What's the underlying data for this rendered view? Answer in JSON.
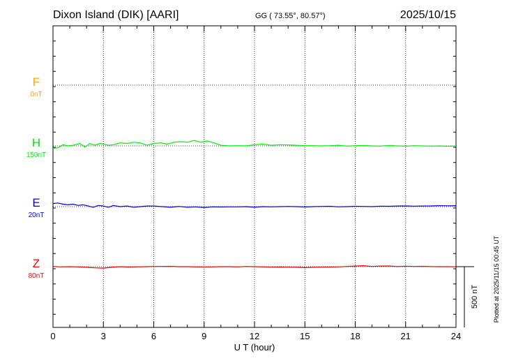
{
  "header": {
    "station": "Dixon Island (DIK)  [AARI]",
    "coords": "GG ( 73.55°,  80.57°)",
    "date": "2025/10/15"
  },
  "footer": {
    "xlabel": "U T (hour)",
    "plotted": "Plotted at 2025/11/15 00:45 UT",
    "scale_label": "500 nT"
  },
  "components": [
    {
      "key": "F",
      "label": "F",
      "offset": "0nT",
      "color": "#ffa500"
    },
    {
      "key": "H",
      "label": "H",
      "offset": "150nT",
      "color": "#00ee00"
    },
    {
      "key": "E",
      "label": "E",
      "offset": "20nT",
      "color": "#0000dd"
    },
    {
      "key": "Z",
      "label": "Z",
      "offset": "80nT",
      "color": "#ee0000"
    }
  ],
  "chart_data": {
    "type": "line",
    "title": "Dixon Island (DIK)  [AARI]",
    "xlabel": "U T (hour)",
    "xlim": [
      0,
      24
    ],
    "xticks": [
      "0",
      "3",
      "6",
      "9",
      "12",
      "15",
      "18",
      "21",
      "24"
    ],
    "ylim": [
      -500,
      500
    ],
    "yunit": "nT",
    "grid": true,
    "scale_bar_nT": 500,
    "series": [
      {
        "name": "H",
        "color": "#00ee00",
        "x": [
          0,
          0.3,
          0.6,
          0.9,
          1.2,
          1.6,
          1.9,
          2.2,
          2.5,
          2.8,
          3.0,
          3.3,
          3.6,
          4.0,
          4.4,
          4.8,
          5.2,
          5.6,
          6.0,
          6.4,
          6.8,
          7.2,
          7.6,
          8.0,
          8.4,
          8.8,
          9.2,
          9.6,
          10.0,
          10.5,
          11.0,
          11.5,
          12.0,
          12.5,
          13.0,
          13.5,
          14.0,
          14.5,
          15.0,
          15.5,
          16.0,
          16.5,
          17.0,
          17.5,
          18.0,
          18.5,
          19.0,
          19.5,
          20.0,
          20.5,
          21.0,
          21.5,
          22.0,
          22.5,
          23.0,
          23.5,
          24.0
        ],
        "y": [
          -20,
          -15,
          10,
          0,
          5,
          20,
          -10,
          20,
          5,
          20,
          15,
          5,
          10,
          25,
          20,
          30,
          25,
          5,
          20,
          25,
          15,
          30,
          35,
          30,
          45,
          30,
          40,
          25,
          5,
          0,
          2,
          0,
          10,
          15,
          5,
          10,
          8,
          5,
          2,
          2,
          0,
          2,
          5,
          -2,
          2,
          3,
          0,
          -2,
          4,
          0,
          -2,
          2,
          0,
          -2,
          0,
          -3,
          0
        ]
      },
      {
        "name": "E",
        "color": "#0000dd",
        "x": [
          0,
          0.3,
          0.6,
          0.9,
          1.2,
          1.5,
          1.8,
          2.1,
          2.4,
          2.7,
          3.0,
          3.3,
          3.6,
          4.0,
          4.4,
          4.8,
          5.2,
          5.6,
          6.0,
          6.5,
          7.0,
          7.5,
          8.0,
          8.5,
          9.0,
          9.5,
          10.0,
          10.5,
          11.0,
          11.5,
          12.0,
          12.5,
          13.0,
          13.5,
          14.0,
          14.5,
          15.0,
          15.5,
          16.0,
          16.5,
          17.0,
          17.5,
          18.0,
          18.5,
          19.0,
          19.5,
          20.0,
          20.5,
          21.0,
          21.5,
          22.0,
          22.5,
          23.0,
          23.5,
          24.0
        ],
        "y": [
          25,
          30,
          20,
          15,
          20,
          10,
          15,
          5,
          -5,
          10,
          5,
          -5,
          10,
          0,
          5,
          -5,
          0,
          5,
          5,
          0,
          -5,
          2,
          -5,
          -2,
          -8,
          -2,
          -3,
          -2,
          -2,
          0,
          -5,
          0,
          -2,
          0,
          2,
          0,
          -3,
          0,
          2,
          3,
          -2,
          0,
          3,
          2,
          0,
          4,
          3,
          5,
          6,
          4,
          5,
          6,
          8,
          7,
          8
        ]
      },
      {
        "name": "Z",
        "color": "#ee0000",
        "x": [
          0,
          0.5,
          1.0,
          1.5,
          2.0,
          2.5,
          3.0,
          3.5,
          4.0,
          4.5,
          5.0,
          5.5,
          6.0,
          6.5,
          7.0,
          7.5,
          8.0,
          8.5,
          9.0,
          9.5,
          10.0,
          10.5,
          11.0,
          11.5,
          12.0,
          12.5,
          13.0,
          13.5,
          14.0,
          14.5,
          15.0,
          15.5,
          16.0,
          16.5,
          17.0,
          17.5,
          18.0,
          18.5,
          19.0,
          19.5,
          20.0,
          20.5,
          21.0,
          21.5,
          22.0,
          22.5,
          23.0,
          23.5,
          24.0
        ],
        "y": [
          2,
          -2,
          0,
          -2,
          -5,
          -10,
          -12,
          -5,
          0,
          -3,
          -2,
          0,
          2,
          2,
          3,
          0,
          0,
          -2,
          -3,
          -2,
          0,
          0,
          -2,
          2,
          0,
          -2,
          -4,
          -3,
          -4,
          -5,
          -8,
          -5,
          -4,
          -3,
          -2,
          2,
          5,
          8,
          2,
          5,
          6,
          1,
          4,
          2,
          3,
          1,
          0,
          0,
          -1
        ]
      }
    ]
  }
}
